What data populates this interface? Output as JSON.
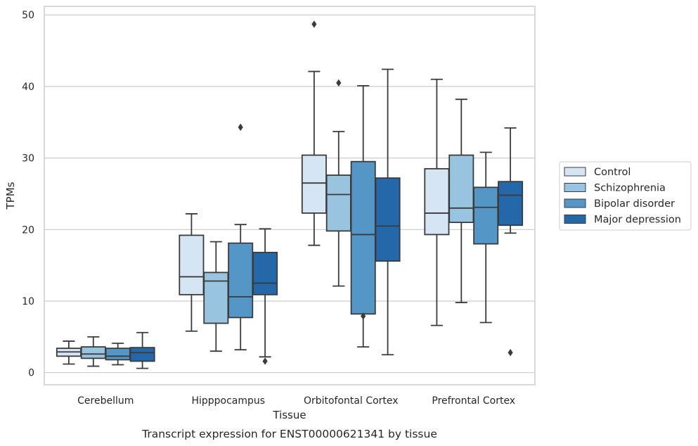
{
  "chart_data": {
    "type": "box",
    "caption": "Transcript expression for ENST00000621341 by tissue",
    "xlabel": "Tissue",
    "ylabel": "TPMs",
    "ylim": [
      -1.7,
      51.2
    ],
    "yticks": [
      0,
      10,
      20,
      30,
      40,
      50
    ],
    "grid": "horizontal",
    "legend_position": "right",
    "categories": [
      "Cerebellum",
      "Hipppocampus",
      "Orbitofontal Cortex",
      "Prefrontal Cortex"
    ],
    "series": [
      {
        "name": "Control",
        "color": "#d6e5f4",
        "boxes": [
          {
            "whislo": 1.2,
            "q1": 2.3,
            "med": 2.9,
            "q3": 3.4,
            "whishi": 4.4,
            "fliers": []
          },
          {
            "whislo": 5.8,
            "q1": 10.9,
            "med": 13.4,
            "q3": 19.2,
            "whishi": 22.2,
            "fliers": []
          },
          {
            "whislo": 17.8,
            "q1": 22.3,
            "med": 26.5,
            "q3": 30.4,
            "whishi": 42.1,
            "fliers": [
              48.7
            ]
          },
          {
            "whislo": 6.6,
            "q1": 19.3,
            "med": 22.3,
            "q3": 28.5,
            "whishi": 41.0,
            "fliers": []
          }
        ]
      },
      {
        "name": "Schizophrenia",
        "color": "#99c4e0",
        "boxes": [
          {
            "whislo": 0.9,
            "q1": 2.0,
            "med": 2.6,
            "q3": 3.6,
            "whishi": 5.0,
            "fliers": []
          },
          {
            "whislo": 3.0,
            "q1": 6.9,
            "med": 12.8,
            "q3": 14.0,
            "whishi": 18.3,
            "fliers": []
          },
          {
            "whislo": 12.1,
            "q1": 19.8,
            "med": 24.9,
            "q3": 27.6,
            "whishi": 33.7,
            "fliers": [
              40.5
            ]
          },
          {
            "whislo": 9.8,
            "q1": 21.0,
            "med": 23.0,
            "q3": 30.4,
            "whishi": 38.2,
            "fliers": []
          }
        ]
      },
      {
        "name": "Bipolar disorder",
        "color": "#5497c7",
        "boxes": [
          {
            "whislo": 1.1,
            "q1": 1.8,
            "med": 2.3,
            "q3": 3.4,
            "whishi": 4.1,
            "fliers": []
          },
          {
            "whislo": 3.2,
            "q1": 7.7,
            "med": 10.6,
            "q3": 18.1,
            "whishi": 20.7,
            "fliers": [
              34.3
            ]
          },
          {
            "whislo": 3.6,
            "q1": 8.2,
            "med": 19.3,
            "q3": 29.5,
            "whishi": 40.1,
            "fliers": [
              7.9
            ]
          },
          {
            "whislo": 7.0,
            "q1": 18.0,
            "med": 23.1,
            "q3": 25.9,
            "whishi": 30.8,
            "fliers": []
          }
        ]
      },
      {
        "name": "Major depression",
        "color": "#2568aa",
        "boxes": [
          {
            "whislo": 0.6,
            "q1": 1.6,
            "med": 2.8,
            "q3": 3.5,
            "whishi": 5.6,
            "fliers": []
          },
          {
            "whislo": 2.2,
            "q1": 10.9,
            "med": 12.5,
            "q3": 16.8,
            "whishi": 20.1,
            "fliers": [
              1.6
            ]
          },
          {
            "whislo": 2.5,
            "q1": 15.6,
            "med": 20.5,
            "q3": 27.2,
            "whishi": 42.4,
            "fliers": []
          },
          {
            "whislo": 19.5,
            "q1": 20.6,
            "med": 24.8,
            "q3": 26.7,
            "whishi": 34.2,
            "fliers": [
              2.8
            ]
          }
        ]
      }
    ]
  }
}
